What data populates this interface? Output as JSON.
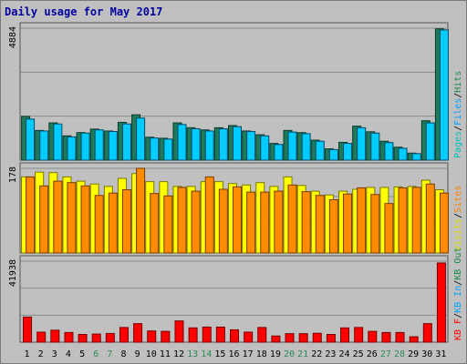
{
  "title": "Daily usage for May 2017",
  "colors": {
    "pages": "#00c0c0",
    "files": "#00a0ff",
    "hits": "#1a7a4a",
    "visits": "#ffff00",
    "sites": "#ff8000",
    "kbytes": "#ff0000",
    "weekend_day": "#2e8b57",
    "weekday": "#000000"
  },
  "chart_data": [
    {
      "type": "bar",
      "panel": "hits",
      "max_label": "4884",
      "legend": [
        "Pages",
        "/",
        "Files",
        "/",
        "Hits"
      ],
      "ylim": [
        0,
        4884
      ],
      "categories": [
        "1",
        "2",
        "3",
        "4",
        "5",
        "6",
        "7",
        "8",
        "9",
        "10",
        "11",
        "12",
        "13",
        "14",
        "15",
        "16",
        "17",
        "18",
        "19",
        "20",
        "21",
        "22",
        "23",
        "24",
        "25",
        "26",
        "27",
        "28",
        "29",
        "30",
        "31"
      ],
      "series": [
        {
          "name": "Hits",
          "values": [
            1620,
            1100,
            1380,
            900,
            1020,
            1150,
            1080,
            1400,
            1680,
            850,
            810,
            1380,
            1200,
            1120,
            1200,
            1280,
            1080,
            940,
            620,
            1100,
            1020,
            740,
            420,
            660,
            1260,
            1050,
            700,
            480,
            260,
            1460,
            4860
          ]
        },
        {
          "name": "Files",
          "values": [
            1520,
            1080,
            1340,
            860,
            1000,
            1120,
            1060,
            1340,
            1560,
            820,
            780,
            1320,
            1160,
            1080,
            1160,
            1240,
            1060,
            900,
            580,
            1040,
            980,
            700,
            390,
            620,
            1200,
            1000,
            650,
            440,
            240,
            1380,
            4820
          ]
        }
      ]
    },
    {
      "type": "bar",
      "panel": "visits",
      "max_label": "178",
      "legend": [
        "Visits",
        "/",
        "Sites"
      ],
      "ylim": [
        0,
        178
      ],
      "categories": [
        "1",
        "2",
        "3",
        "4",
        "5",
        "6",
        "7",
        "8",
        "9",
        "10",
        "11",
        "12",
        "13",
        "14",
        "15",
        "16",
        "17",
        "18",
        "19",
        "20",
        "21",
        "22",
        "23",
        "24",
        "25",
        "26",
        "27",
        "28",
        "29",
        "30",
        "31"
      ],
      "series": [
        {
          "name": "Visits",
          "values": [
            160,
            170,
            169,
            160,
            151,
            145,
            140,
            157,
            167,
            150,
            150,
            140,
            140,
            150,
            150,
            146,
            143,
            148,
            140,
            160,
            142,
            130,
            122,
            130,
            134,
            138,
            138,
            139,
            140,
            153,
            133
          ]
        },
        {
          "name": "Sites",
          "values": [
            160,
            141,
            151,
            148,
            141,
            121,
            126,
            133,
            178,
            125,
            120,
            138,
            130,
            160,
            134,
            139,
            128,
            128,
            130,
            143,
            129,
            121,
            112,
            124,
            137,
            123,
            104,
            137,
            138,
            145,
            126
          ]
        }
      ]
    },
    {
      "type": "bar",
      "panel": "kbytes",
      "max_label": "41938",
      "legend": [
        "KB F",
        "/",
        "KB In",
        "/",
        "KB Out"
      ],
      "ylim": [
        0,
        41938
      ],
      "categories": [
        "1",
        "2",
        "3",
        "4",
        "5",
        "6",
        "7",
        "8",
        "9",
        "10",
        "11",
        "12",
        "13",
        "14",
        "15",
        "16",
        "17",
        "18",
        "19",
        "20",
        "21",
        "22",
        "23",
        "24",
        "25",
        "26",
        "27",
        "28",
        "29",
        "30",
        "31"
      ],
      "series": [
        {
          "name": "KB F",
          "values": [
            13000,
            5200,
            6200,
            5000,
            4000,
            4200,
            4500,
            7600,
            9600,
            5800,
            5600,
            11000,
            7400,
            7800,
            7800,
            6400,
            5200,
            7600,
            3200,
            4400,
            4400,
            4600,
            4000,
            7400,
            7600,
            5600,
            5000,
            5000,
            2800,
            9600,
            41000
          ]
        }
      ]
    }
  ],
  "weekend_days": [
    "6",
    "7",
    "13",
    "14",
    "20",
    "21",
    "27",
    "28"
  ]
}
